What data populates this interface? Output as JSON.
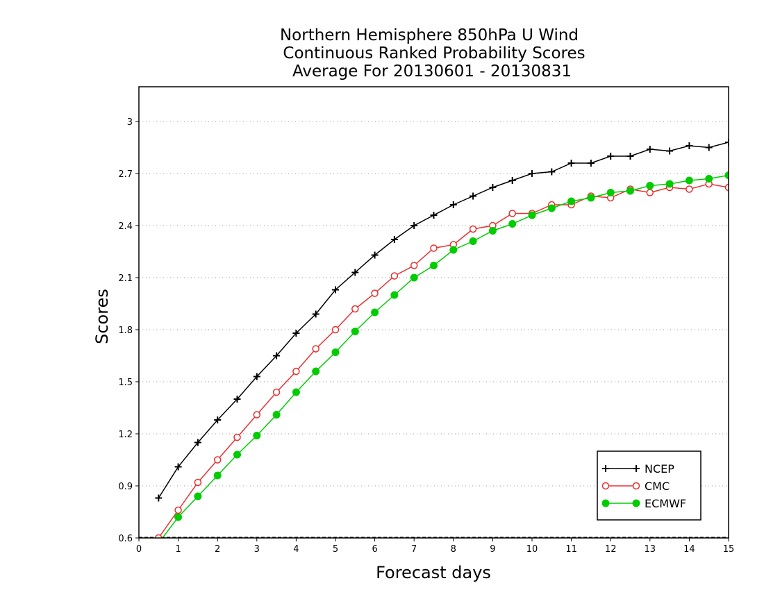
{
  "chart_data": {
    "type": "line",
    "title": [
      "Northern Hemisphere 850hPa U Wind",
      "Continuous Ranked Probability Scores",
      "Average For 20130601 - 20130831"
    ],
    "xlabel": "Forecast days",
    "ylabel": "Scores",
    "xlim": [
      0,
      15
    ],
    "ylim": [
      0.6,
      3.2
    ],
    "xticks": [
      "0",
      "1",
      "2",
      "3",
      "4",
      "5",
      "6",
      "7",
      "8",
      "9",
      "10",
      "11",
      "12",
      "13",
      "14",
      "15"
    ],
    "yticks": [
      "0.6",
      "0.9",
      "1.2",
      "1.5",
      "1.8",
      "2.1",
      "2.4",
      "2.7",
      "3"
    ],
    "grid": "horizontal-dotted",
    "legend_position": "bottom-right",
    "x": [
      0.5,
      1,
      1.5,
      2,
      2.5,
      3,
      3.5,
      4,
      4.5,
      5,
      5.5,
      6,
      6.5,
      7,
      7.5,
      8,
      8.5,
      9,
      9.5,
      10,
      10.5,
      11,
      11.5,
      12,
      12.5,
      13,
      13.5,
      14,
      14.5,
      15
    ],
    "series": [
      {
        "name": "NCEP",
        "color": "#000000",
        "marker": "plus",
        "values": [
          0.83,
          1.01,
          1.15,
          1.28,
          1.4,
          1.53,
          1.65,
          1.78,
          1.89,
          2.03,
          2.13,
          2.23,
          2.32,
          2.4,
          2.46,
          2.52,
          2.57,
          2.62,
          2.66,
          2.7,
          2.71,
          2.76,
          2.76,
          2.8,
          2.8,
          2.84,
          2.83,
          2.86,
          2.85,
          2.88
        ]
      },
      {
        "name": "CMC",
        "color": "#e8302f",
        "marker": "open-circle",
        "values": [
          0.6,
          0.76,
          0.92,
          1.05,
          1.18,
          1.31,
          1.44,
          1.56,
          1.69,
          1.8,
          1.92,
          2.01,
          2.11,
          2.17,
          2.27,
          2.29,
          2.38,
          2.4,
          2.47,
          2.47,
          2.52,
          2.52,
          2.57,
          2.56,
          2.61,
          2.59,
          2.62,
          2.61,
          2.64,
          2.62
        ]
      },
      {
        "name": "ECMWF",
        "color": "#00cc00",
        "marker": "filled-circle",
        "values": [
          0.57,
          0.72,
          0.84,
          0.96,
          1.08,
          1.19,
          1.31,
          1.44,
          1.56,
          1.67,
          1.79,
          1.9,
          2.0,
          2.1,
          2.17,
          2.26,
          2.31,
          2.37,
          2.41,
          2.46,
          2.5,
          2.54,
          2.56,
          2.59,
          2.6,
          2.63,
          2.64,
          2.66,
          2.67,
          2.69
        ]
      }
    ]
  }
}
